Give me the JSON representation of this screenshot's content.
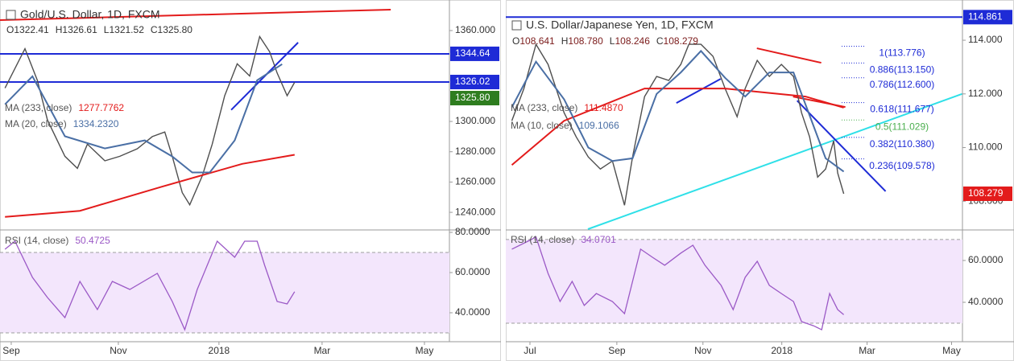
{
  "chart_data": [
    {
      "type": "line",
      "title": "Gold/U.S. Dollar, 1D, FXCM",
      "ohlc": [
        {
          "key": "O",
          "value": 1322.41,
          "label": "1322.41"
        },
        {
          "key": "H",
          "value": 1326.61,
          "label": "1326.61"
        },
        {
          "key": "L",
          "value": 1321.52,
          "label": "1321.52"
        },
        {
          "key": "C",
          "value": 1325.8,
          "label": "1325.80"
        }
      ],
      "ohlc_color": "#333333",
      "xlim": [
        0,
        180
      ],
      "xticks": [
        {
          "value": 4.5,
          "label": "Sep"
        },
        {
          "value": 47.4,
          "label": "Nov"
        },
        {
          "value": 87.7,
          "label": "2018"
        },
        {
          "value": 129,
          "label": "Mar"
        },
        {
          "value": 170,
          "label": "May"
        }
      ],
      "ylim": [
        1228.9,
        1373.8
      ],
      "yticks": [
        {
          "value": 1240,
          "label": "1240.000"
        },
        {
          "value": 1260,
          "label": "1260.000"
        },
        {
          "value": 1280,
          "label": "1280.000"
        },
        {
          "value": 1300,
          "label": "1300.000"
        },
        {
          "value": 1360,
          "label": "1360.000"
        }
      ],
      "grid": false,
      "series": [
        {
          "color": "#4f4f4f",
          "x": [
            2,
            10,
            15,
            19,
            26,
            31,
            35,
            42,
            48,
            55,
            61,
            66,
            69,
            73,
            76,
            81,
            85,
            90,
            95,
            100,
            104,
            108,
            111,
            115,
            118
          ],
          "values": [
            1322,
            1348,
            1327,
            1301,
            1277,
            1269,
            1285,
            1274,
            1277,
            1282,
            1290,
            1293,
            1277,
            1253,
            1245,
            1264,
            1285,
            1317,
            1338,
            1330,
            1356,
            1346,
            1332,
            1317,
            1325.8
          ]
        },
        {
          "name": "MA (233, close)",
          "last": {
            "value": 1277.7762,
            "label": "1277.7762"
          },
          "color": "#e31b1b",
          "x": [
            2,
            32,
            65,
            97,
            118
          ],
          "values": [
            1237,
            1241,
            1257,
            1272,
            1278
          ]
        },
        {
          "name": "MA (20, close)",
          "last": {
            "value": 1334.232,
            "label": "1334.2320"
          },
          "color": "#4a6fa5",
          "x": [
            2,
            13,
            26,
            42,
            58,
            69,
            77,
            84,
            94,
            103,
            113
          ],
          "values": [
            1311.3,
            1329.8,
            1290.2,
            1282.2,
            1287.5,
            1276.9,
            1266.3,
            1266.3,
            1287.5,
            1327.2,
            1337.8
          ]
        }
      ],
      "price_lines": [
        {
          "value": 1344.64,
          "label": "1344.64",
          "color": "#1e2bd6"
        },
        {
          "value": 1326.02,
          "label": "1326.02",
          "color": "#1e2bd6"
        }
      ],
      "last": {
        "value": 1325.8,
        "label": "1325.80",
        "color": "#2e7d1f"
      },
      "trendlines": [
        {
          "color": "#e31b1b",
          "x": [
            0,
            156.5
          ],
          "y": [
            1366.9,
            1373.8
          ]
        },
        {
          "color": "#1e2bd6",
          "x": [
            92.6,
            119.4
          ],
          "y": [
            1307.6,
            1352.1
          ]
        }
      ],
      "rsi": {
        "title": "RSI (14, close)",
        "last": {
          "value": 50.4725,
          "label": "50.4725"
        },
        "color": "#9b59c6",
        "band": [
          30,
          70
        ],
        "ylim": [
          27.6,
          80.8
        ],
        "yticks": [
          {
            "value": 40,
            "label": "40.0000"
          },
          {
            "value": 60,
            "label": "60.0000"
          },
          {
            "value": 80,
            "label": "80.0000"
          }
        ],
        "x": [
          2,
          6,
          13,
          19,
          26,
          32,
          39,
          45,
          52,
          63,
          69,
          74,
          79,
          87,
          94,
          98,
          103,
          106,
          111,
          115,
          118
        ],
        "values": [
          71.6,
          75.6,
          57.6,
          47.6,
          37.6,
          55.6,
          41.6,
          55.6,
          51.6,
          59.6,
          45.6,
          31.6,
          51.6,
          75.6,
          67.6,
          75.6,
          75.6,
          63.6,
          45.6,
          44.4,
          50.4725
        ]
      }
    },
    {
      "type": "line",
      "title": "U.S. Dollar/Japanese Yen, 1D, FXCM",
      "ohlc": [
        {
          "key": "O",
          "value": 108.641,
          "label": "108.641"
        },
        {
          "key": "H",
          "value": 108.78,
          "label": "108.780"
        },
        {
          "key": "L",
          "value": 108.246,
          "label": "108.246"
        },
        {
          "key": "C",
          "value": 108.279,
          "label": "108.279"
        }
      ],
      "ohlc_color": "#7b1b1b",
      "xlim": [
        0,
        227
      ],
      "xticks": [
        {
          "value": 12,
          "label": "Jul"
        },
        {
          "value": 55.2,
          "label": "Sep"
        },
        {
          "value": 98,
          "label": "Nov"
        },
        {
          "value": 137.2,
          "label": "2018"
        },
        {
          "value": 179.6,
          "label": "Mar"
        },
        {
          "value": 221.6,
          "label": "May"
        }
      ],
      "ylim": [
        106.96,
        115.14
      ],
      "yticks": [
        {
          "value": 108,
          "label": "108.000"
        },
        {
          "value": 110,
          "label": "110.000"
        },
        {
          "value": 112,
          "label": "112.000"
        },
        {
          "value": 114,
          "label": "114.000"
        }
      ],
      "grid": false,
      "series": [
        {
          "color": "#4f4f4f",
          "x": [
            3,
            9,
            15,
            21,
            29,
            35,
            41,
            47,
            53,
            59,
            63,
            69,
            75,
            81,
            87,
            91,
            97,
            103,
            109,
            115,
            119,
            125,
            131,
            137,
            143,
            147,
            151,
            155,
            159,
            163,
            165,
            168
          ],
          "values": [
            111.0,
            112.2,
            113.85,
            113.1,
            111.3,
            110.4,
            109.65,
            109.2,
            109.5,
            107.85,
            109.65,
            111.9,
            112.65,
            112.5,
            113.1,
            113.85,
            113.85,
            113.4,
            112.2,
            111.15,
            112.2,
            113.25,
            112.65,
            113.1,
            112.65,
            111.3,
            110.4,
            108.9,
            109.2,
            110.25,
            109.05,
            108.279
          ]
        },
        {
          "name": "MA (233, close)",
          "last": {
            "value": 111.487,
            "label": "111.4870"
          },
          "color": "#e31b1b",
          "x": [
            3,
            29,
            69,
            109,
            149,
            168
          ],
          "values": [
            109.35,
            111.0,
            112.2,
            112.2,
            111.9,
            111.487
          ]
        },
        {
          "name": "MA (10, close)",
          "last": {
            "value": 109.1066,
            "label": "109.1066"
          },
          "color": "#4a6fa5",
          "x": [
            3,
            15,
            29,
            41,
            53,
            63,
            75,
            87,
            97,
            109,
            119,
            131,
            143,
            151,
            159,
            168
          ],
          "values": [
            111.5,
            113.2,
            111.8,
            110.0,
            109.5,
            109.6,
            112.0,
            112.8,
            113.6,
            112.6,
            111.9,
            112.8,
            112.8,
            111.2,
            109.6,
            109.1066
          ]
        }
      ],
      "price_lines": [
        {
          "value": 114.861,
          "label": "114.861",
          "color": "#1e2bd6"
        }
      ],
      "last": {
        "value": 108.279,
        "label": "108.279",
        "color": "#e31b1b"
      },
      "trendlines": [
        {
          "color": "#2fe0e8",
          "x": [
            40.8,
            226.8
          ],
          "y": [
            106.96,
            112.0
          ]
        },
        {
          "color": "#1e2bd6",
          "x": [
            144.8,
            188.8
          ],
          "y": [
            111.75,
            108.37
          ]
        },
        {
          "color": "#e31b1b",
          "x": [
            124.8,
            156.8
          ],
          "y": [
            113.7,
            113.16
          ]
        },
        {
          "color": "#e31b1b",
          "x": [
            142.8,
            168.8
          ],
          "y": [
            111.9,
            111.51
          ]
        },
        {
          "color": "#1e2bd6",
          "x": [
            84.8,
            106.8
          ],
          "y": [
            111.66,
            112.56
          ]
        }
      ],
      "fib": [
        {
          "value": 113.776,
          "label": "1(113.776)",
          "color": "#1e2bd6"
        },
        {
          "value": 113.15,
          "label": "0.886(113.150)",
          "color": "#1e2bd6"
        },
        {
          "value": 112.6,
          "label": "0.786(112.600)",
          "color": "#1e2bd6"
        },
        {
          "value": 111.677,
          "label": "0.618(111.677)",
          "color": "#1e2bd6"
        },
        {
          "value": 111.029,
          "label": "0.5(111.029)",
          "color": "#4caf50"
        },
        {
          "value": 110.38,
          "label": "0.382(110.380)",
          "color": "#1e2bd6"
        },
        {
          "value": 109.578,
          "label": "0.236(109.578)",
          "color": "#1e2bd6"
        }
      ],
      "rsi": {
        "title": "RSI (14, close)",
        "last": {
          "value": 34.0701,
          "label": "34.0701"
        },
        "color": "#9b59c6",
        "band": [
          30,
          70
        ],
        "ylim": [
          23.1,
          74.2
        ],
        "yticks": [
          {
            "value": 40,
            "label": "40.0000"
          },
          {
            "value": 60,
            "label": "60.0000"
          }
        ],
        "x": [
          3,
          11,
          15,
          21,
          27,
          33,
          39,
          45,
          53,
          59,
          67,
          73,
          79,
          87,
          93,
          99,
          107,
          113,
          119,
          125,
          131,
          137,
          143,
          147,
          153,
          157,
          161,
          165,
          168
        ],
        "values": [
          65.4,
          69.2,
          71.2,
          53.8,
          40.4,
          50,
          38.5,
          44.2,
          40.4,
          34.6,
          65.4,
          61.5,
          57.7,
          63.5,
          67.3,
          57.7,
          48.1,
          36.5,
          51.9,
          59.6,
          48.1,
          44.2,
          40.4,
          30.8,
          28.8,
          26.9,
          44.2,
          36.5,
          34.0701
        ]
      }
    }
  ]
}
